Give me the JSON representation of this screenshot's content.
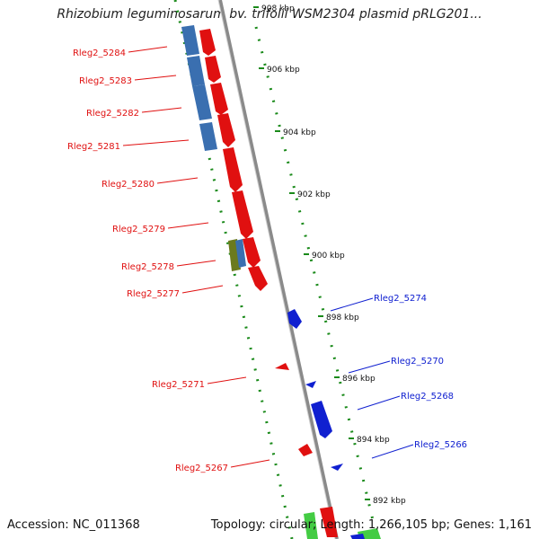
{
  "title": "Rhizobium leguminosarum bv. trifolii WSM2304 plasmid pRLG201...",
  "footer": {
    "accession": "Accession: NC_011368",
    "summary": "Topology: circular; Length: 1,266,105 bp; Genes: 1,161"
  },
  "ticks": [
    "908 kbp",
    "906 kbp",
    "904 kbp",
    "902 kbp",
    "900 kbp",
    "898 kbp",
    "896 kbp",
    "894 kbp",
    "892 kbp"
  ],
  "genes_forward": [
    "Rleg2_5284",
    "Rleg2_5283",
    "Rleg2_5282",
    "Rleg2_5281",
    "Rleg2_5280",
    "Rleg2_5279",
    "Rleg2_5278",
    "Rleg2_5277",
    "Rleg2_5271",
    "Rleg2_5267"
  ],
  "genes_reverse": [
    "Rleg2_5274",
    "Rleg2_5270",
    "Rleg2_5268",
    "Rleg2_5266"
  ],
  "colors": {
    "forward": "#e01010",
    "reverse": "#1020d0",
    "other": "#3a6fb0",
    "rna": "#2f8f2f",
    "misc": "#6b7a1e",
    "backbone": "#8a8a8a",
    "gc": "#1a8a1a"
  }
}
